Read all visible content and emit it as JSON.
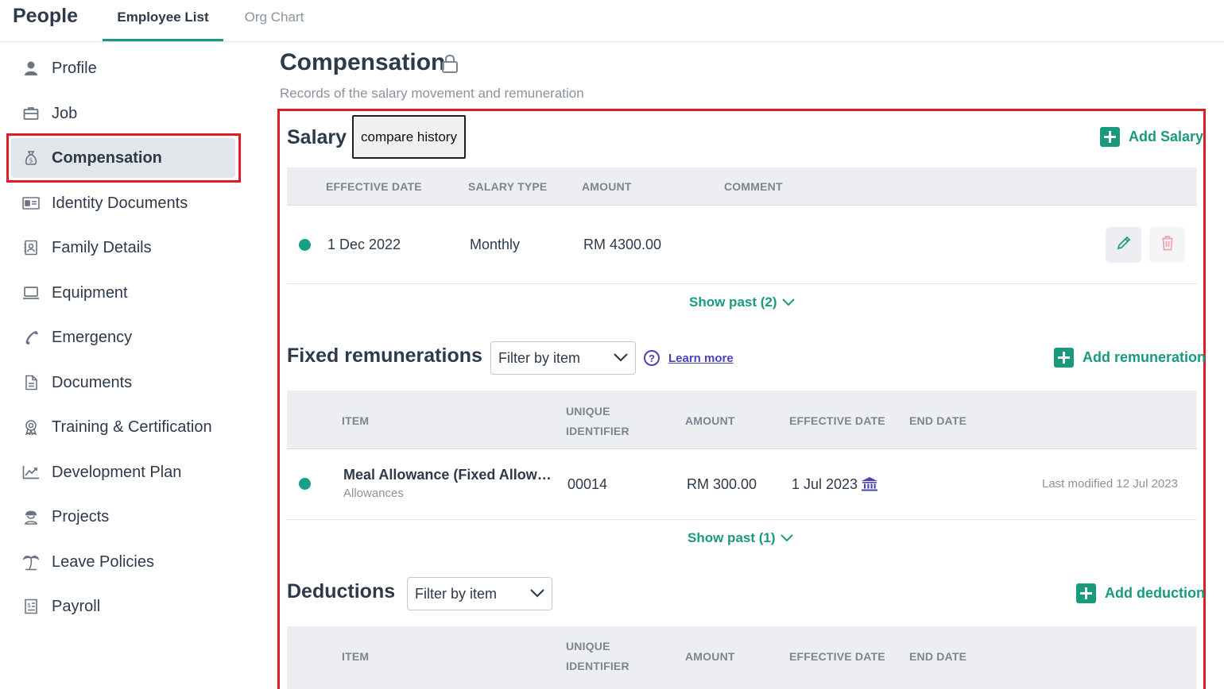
{
  "app": {
    "title": "People"
  },
  "tabs": [
    {
      "label": "Employee List",
      "active": true
    },
    {
      "label": "Org Chart",
      "active": false
    }
  ],
  "sidebar": {
    "items": [
      {
        "label": "Profile",
        "icon": "person-icon"
      },
      {
        "label": "Job",
        "icon": "briefcase-icon"
      },
      {
        "label": "Compensation",
        "icon": "money-bag-icon",
        "active": true
      },
      {
        "label": "Identity Documents",
        "icon": "id-card-icon"
      },
      {
        "label": "Family Details",
        "icon": "contact-book-icon"
      },
      {
        "label": "Equipment",
        "icon": "laptop-icon"
      },
      {
        "label": "Emergency",
        "icon": "phone-icon"
      },
      {
        "label": "Documents",
        "icon": "document-icon"
      },
      {
        "label": "Training & Certification",
        "icon": "award-icon"
      },
      {
        "label": "Development Plan",
        "icon": "chart-line-icon"
      },
      {
        "label": "Projects",
        "icon": "worker-icon"
      },
      {
        "label": "Leave Policies",
        "icon": "palm-tree-icon"
      },
      {
        "label": "Payroll",
        "icon": "payslip-icon"
      }
    ]
  },
  "page": {
    "title": "Compensation",
    "subtitle": "Records of the salary movement and remuneration"
  },
  "salary": {
    "title": "Salary",
    "compare_label": "compare history",
    "add_label": "Add Salary",
    "headers": [
      "EFFECTIVE DATE",
      "SALARY TYPE",
      "AMOUNT",
      "COMMENT"
    ],
    "row": {
      "effective_date": "1 Dec 2022",
      "salary_type": "Monthly",
      "amount": "RM 4300.00",
      "comment": ""
    },
    "show_past": "Show past (2)"
  },
  "remunerations": {
    "title": "Fixed remunerations",
    "filter_placeholder": "Filter by item",
    "learn_more": "Learn more",
    "add_label": "Add remuneration",
    "headers": {
      "item": "ITEM",
      "uid_line1": "UNIQUE",
      "uid_line2": "IDENTIFIER",
      "amount": "AMOUNT",
      "effective_date": "EFFECTIVE DATE",
      "end_date": "END DATE"
    },
    "row": {
      "item": "Meal Allowance (Fixed Allow…",
      "category": "Allowances",
      "uid": "00014",
      "amount": "RM 300.00",
      "effective_date": "1 Jul 2023",
      "last_modified": "Last modified 12 Jul 2023"
    },
    "show_past": "Show past (1)"
  },
  "deductions": {
    "title": "Deductions",
    "filter_placeholder": "Filter by item",
    "add_label": "Add deduction",
    "headers": {
      "item": "ITEM",
      "uid_line1": "UNIQUE",
      "uid_line2": "IDENTIFIER",
      "amount": "AMOUNT",
      "effective_date": "EFFECTIVE DATE",
      "end_date": "END DATE"
    }
  },
  "colors": {
    "accent": "#1a9a7c",
    "status_active": "#16a085",
    "highlight": "#e01b24",
    "link": "#4b43b4"
  }
}
